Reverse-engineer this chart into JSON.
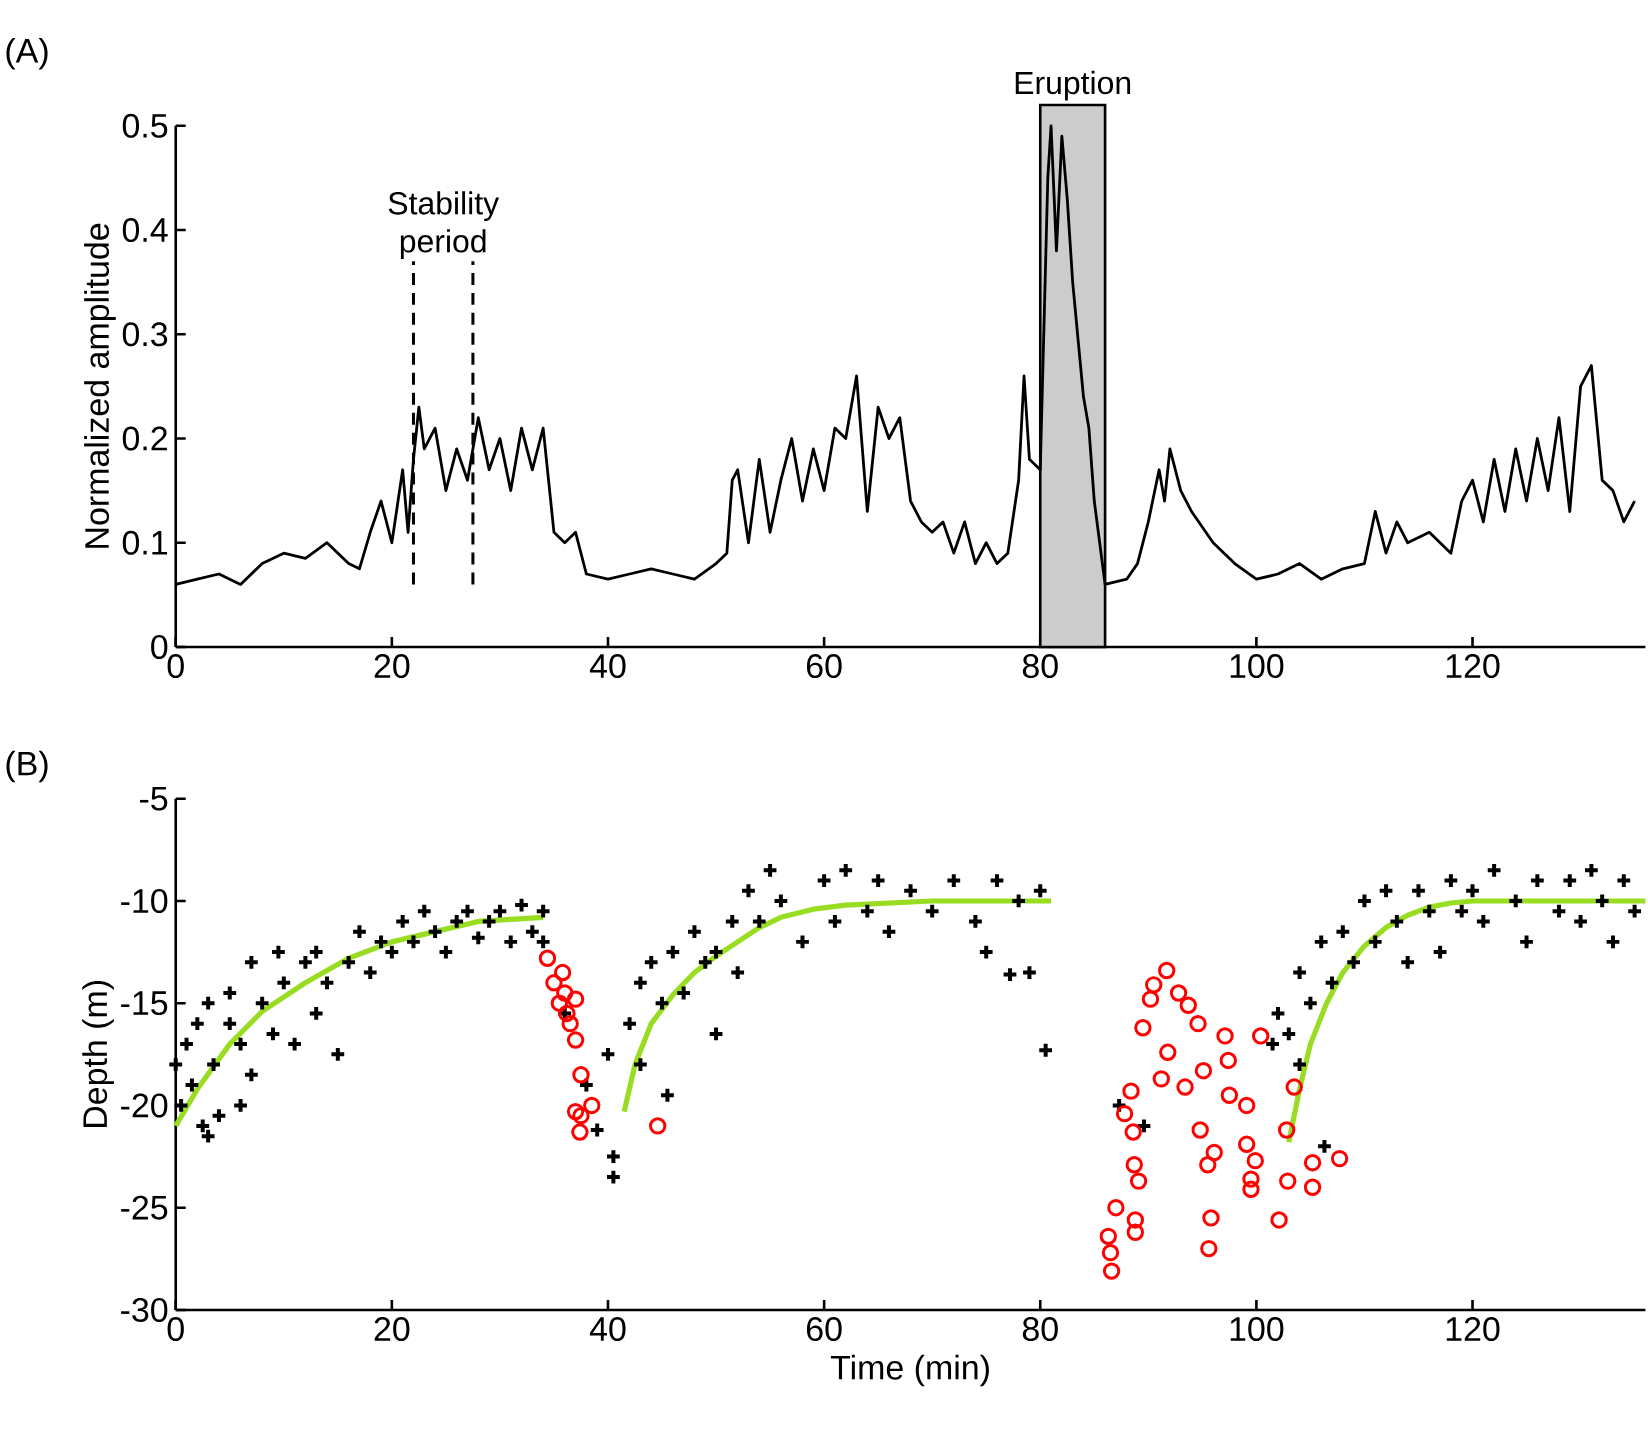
{
  "chart_data": [
    {
      "type": "line",
      "title": "(A)",
      "ylabel": "Normalized amplitude",
      "xlim": [
        0,
        136
      ],
      "xticks": [
        0,
        20,
        40,
        60,
        80,
        100,
        120
      ],
      "ylim": [
        0,
        0.5
      ],
      "yticks": [
        0,
        0.1,
        0.2,
        0.3,
        0.4,
        0.5
      ],
      "grid": false,
      "marker": "none",
      "line_style": "solid",
      "series": [
        {
          "color": "#000000",
          "x": [
            0,
            2,
            4,
            6,
            8,
            10,
            12,
            14,
            16,
            17,
            18,
            19,
            20,
            21,
            21.5,
            22,
            22.5,
            23,
            24,
            25,
            26,
            27,
            28,
            29,
            30,
            31,
            32,
            33,
            34,
            35,
            36,
            37,
            38,
            40,
            42,
            44,
            46,
            48,
            50,
            51,
            51.5,
            52,
            53,
            54,
            55,
            56,
            57,
            58,
            59,
            60,
            61,
            62,
            63,
            64,
            65,
            66,
            67,
            68,
            69,
            70,
            71,
            72,
            73,
            74,
            75,
            76,
            77,
            78,
            78.5,
            79,
            80,
            80.7,
            81,
            81.5,
            82,
            82.5,
            83,
            84,
            84.5,
            85,
            86,
            88,
            89,
            90,
            91,
            91.5,
            92,
            93,
            94,
            96,
            98,
            100,
            102,
            104,
            106,
            108,
            110,
            111,
            112,
            113,
            114,
            116,
            118,
            119,
            120,
            121,
            122,
            123,
            124,
            125,
            126,
            127,
            128,
            129,
            130,
            131,
            132,
            133,
            134,
            135
          ],
          "values": [
            0.06,
            0.065,
            0.07,
            0.06,
            0.08,
            0.09,
            0.085,
            0.1,
            0.08,
            0.075,
            0.11,
            0.14,
            0.1,
            0.17,
            0.11,
            0.18,
            0.23,
            0.19,
            0.21,
            0.15,
            0.19,
            0.16,
            0.22,
            0.17,
            0.2,
            0.15,
            0.21,
            0.17,
            0.21,
            0.11,
            0.1,
            0.11,
            0.07,
            0.065,
            0.07,
            0.075,
            0.07,
            0.065,
            0.08,
            0.09,
            0.16,
            0.17,
            0.1,
            0.18,
            0.11,
            0.16,
            0.2,
            0.14,
            0.19,
            0.15,
            0.21,
            0.2,
            0.26,
            0.13,
            0.23,
            0.2,
            0.22,
            0.14,
            0.12,
            0.11,
            0.12,
            0.09,
            0.12,
            0.08,
            0.1,
            0.08,
            0.09,
            0.16,
            0.26,
            0.18,
            0.17,
            0.45,
            0.5,
            0.38,
            0.49,
            0.43,
            0.35,
            0.24,
            0.21,
            0.14,
            0.06,
            0.065,
            0.08,
            0.12,
            0.17,
            0.14,
            0.19,
            0.15,
            0.13,
            0.1,
            0.08,
            0.065,
            0.07,
            0.08,
            0.065,
            0.075,
            0.08,
            0.13,
            0.09,
            0.12,
            0.1,
            0.11,
            0.09,
            0.14,
            0.16,
            0.12,
            0.18,
            0.13,
            0.19,
            0.14,
            0.2,
            0.15,
            0.22,
            0.13,
            0.25,
            0.27,
            0.16,
            0.15,
            0.12,
            0.14
          ]
        }
      ],
      "ref_lines": [
        {
          "axis": "x",
          "value": 22,
          "line_style": "dashed"
        },
        {
          "axis": "x",
          "value": 27.5,
          "line_style": "dashed"
        }
      ],
      "bands": [
        {
          "axis": "x",
          "from": 80,
          "to": 86,
          "label": "Eruption",
          "color": "#cccccc"
        }
      ],
      "annotations": [
        "Stability period"
      ]
    },
    {
      "type": "scatter",
      "title": "(B)",
      "xlabel": "Time (min)",
      "ylabel": "Depth (m)",
      "xlim": [
        0,
        136
      ],
      "xticks": [
        0,
        20,
        40,
        60,
        80,
        100,
        120
      ],
      "ylim": [
        -30,
        -5
      ],
      "yticks": [
        -30,
        -25,
        -20,
        -15,
        -10,
        -5
      ],
      "grid": false,
      "series": [
        {
          "type": "scatter",
          "marker": "cross",
          "color": "#000000",
          "x": [
            0,
            0.5,
            1,
            1.5,
            2,
            2.5,
            3,
            3.5,
            4,
            5,
            5,
            6,
            7,
            7,
            8,
            9,
            9.5,
            10,
            11,
            12,
            13,
            13,
            14,
            15,
            16,
            17,
            18,
            19,
            20,
            21,
            22,
            23,
            24,
            25,
            26,
            27,
            28,
            29,
            30,
            31,
            32,
            33,
            34,
            34,
            6,
            3,
            36,
            38,
            39,
            40.5,
            40.5,
            40,
            42,
            43,
            43,
            44,
            45,
            45.5,
            46,
            47,
            48,
            49,
            50,
            50,
            51.5,
            52,
            53,
            54,
            55,
            56,
            58,
            60,
            61,
            62,
            64,
            65,
            66,
            68,
            70,
            72,
            74,
            75,
            76,
            78,
            79,
            80,
            80.5,
            77.2,
            87.3,
            89.6,
            103,
            104,
            104,
            105,
            106,
            107,
            108,
            109,
            110,
            111,
            112,
            113,
            114,
            115,
            116,
            117,
            118,
            119,
            120,
            121,
            122,
            124,
            125,
            126,
            128,
            129,
            130,
            131,
            132,
            133,
            134,
            135,
            102,
            101.5,
            106.3
          ],
          "values": [
            -18,
            -20,
            -17,
            -19,
            -16,
            -21,
            -15,
            -18,
            -20.5,
            -16,
            -14.5,
            -17,
            -13,
            -18.5,
            -15,
            -16.5,
            -12.5,
            -14,
            -17,
            -13,
            -15.5,
            -12.5,
            -14,
            -17.5,
            -13,
            -11.5,
            -13.5,
            -12,
            -12.5,
            -11,
            -12,
            -10.5,
            -11.5,
            -12.5,
            -11,
            -10.5,
            -11.8,
            -11,
            -10.5,
            -12,
            -10.2,
            -11.5,
            -10.5,
            -12,
            -20,
            -21.5,
            -15.5,
            -19,
            -21.2,
            -23.5,
            -22.5,
            -17.5,
            -16,
            -14,
            -18,
            -13,
            -15,
            -19.5,
            -12.5,
            -14.5,
            -11.5,
            -13,
            -12.5,
            -16.5,
            -11,
            -13.5,
            -9.5,
            -11,
            -8.5,
            -10,
            -12,
            -9,
            -11,
            -8.5,
            -10.5,
            -9,
            -11.5,
            -9.5,
            -10.5,
            -9,
            -11,
            -12.5,
            -9,
            -10,
            -13.5,
            -9.5,
            -17.3,
            -13.6,
            -20,
            -21,
            -16.5,
            -13.5,
            -18,
            -15,
            -12,
            -14,
            -11.5,
            -13,
            -10,
            -12,
            -9.5,
            -11,
            -13,
            -9.5,
            -10.5,
            -12.5,
            -9,
            -10.5,
            -9.5,
            -11,
            -8.5,
            -10,
            -12,
            -9,
            -10.5,
            -9,
            -11,
            -8.5,
            -10,
            -12,
            -9,
            -10.5,
            -15.5,
            -17,
            -22
          ]
        },
        {
          "type": "scatter",
          "marker": "circle",
          "color": "#ff0000",
          "x": [
            34.4,
            35,
            35.5,
            36,
            36.2,
            36.5,
            37,
            37,
            35.8,
            37.5,
            37,
            37.5,
            37.4,
            38.5,
            44.6,
            86.6,
            86.5,
            86.3,
            87,
            88.8,
            88.8,
            88.7,
            89.1,
            87.8,
            88.4,
            88.6,
            89.5,
            90.2,
            90.5,
            91.7,
            91.8,
            91.2,
            92.8,
            93.7,
            94.6,
            93.4,
            95.1,
            94.8,
            95.5,
            96.1,
            95.8,
            95.6,
            97.1,
            97.4,
            97.5,
            99.1,
            99.1,
            99.9,
            99.5,
            99.5,
            100.4,
            102.1,
            102.9,
            102.8,
            103.5,
            105.2,
            105.2,
            107.7
          ],
          "values": [
            -12.8,
            -14,
            -15,
            -14.5,
            -15.5,
            -16,
            -14.8,
            -16.8,
            -13.5,
            -18.5,
            -20.3,
            -20.5,
            -21.3,
            -20,
            -21,
            -28.1,
            -27.2,
            -26.4,
            -25,
            -25.6,
            -26.2,
            -22.9,
            -23.7,
            -20.4,
            -19.3,
            -21.3,
            -16.2,
            -14.8,
            -14.1,
            -13.4,
            -17.4,
            -18.7,
            -14.5,
            -15.1,
            -16,
            -19.1,
            -18.3,
            -21.2,
            -22.9,
            -22.3,
            -25.5,
            -27,
            -16.6,
            -17.8,
            -19.5,
            -20,
            -21.9,
            -22.7,
            -23.6,
            -24.1,
            -16.6,
            -25.6,
            -23.7,
            -21.2,
            -19.1,
            -22.8,
            -24,
            -22.6
          ]
        },
        {
          "type": "line",
          "marker": "none",
          "color": "#99dd22",
          "x": [
            0,
            2,
            5,
            8,
            12,
            16,
            20,
            24,
            28,
            31,
            34
          ],
          "values": [
            -21,
            -19.2,
            -17,
            -15.4,
            -14,
            -12.8,
            -12,
            -11.5,
            -11,
            -10.9,
            -10.8
          ]
        },
        {
          "type": "line",
          "marker": "none",
          "color": "#99dd22",
          "x": [
            41.5,
            42.5,
            44,
            46,
            48,
            50,
            52,
            54,
            56,
            59,
            62,
            66,
            70,
            75,
            81
          ],
          "values": [
            -20.3,
            -18,
            -16,
            -14.6,
            -13.5,
            -12.7,
            -12,
            -11.3,
            -10.8,
            -10.4,
            -10.2,
            -10.1,
            -10,
            -10,
            -10
          ]
        },
        {
          "type": "line",
          "marker": "none",
          "color": "#99dd22",
          "x": [
            103,
            104,
            105,
            106.5,
            108,
            110,
            112,
            114,
            116,
            118,
            120,
            125,
            130,
            136
          ],
          "values": [
            -21.8,
            -19.2,
            -17,
            -15,
            -13.5,
            -12.2,
            -11.3,
            -10.7,
            -10.3,
            -10.1,
            -10,
            -10,
            -10,
            -10
          ]
        }
      ]
    }
  ]
}
